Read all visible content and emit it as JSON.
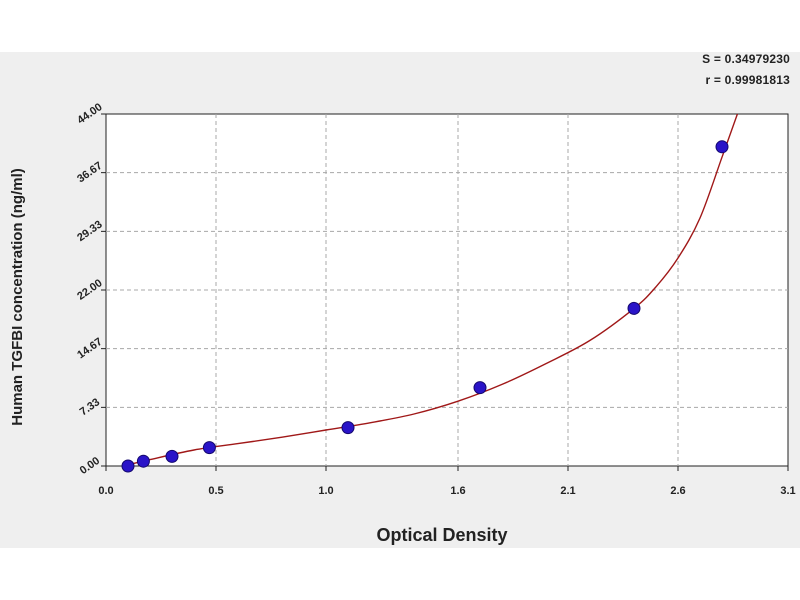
{
  "stats": {
    "s_label": "S = 0.34979230",
    "r_label": "r = 0.99981813"
  },
  "colors": {
    "panel_background": "#efefef",
    "plot_background": "#ffffff",
    "curve": "#a01818",
    "points": "#2a14c8",
    "grid": "#a8a8a8"
  },
  "chart_data": {
    "type": "scatter",
    "xlabel": "Optical Density",
    "ylabel": "Human TGFBI concentration (ng/ml)",
    "xlim": [
      0,
      3.1
    ],
    "ylim": [
      0,
      44
    ],
    "x_ticks": [
      0.0,
      0.5,
      1.0,
      1.6,
      2.1,
      2.6,
      3.1
    ],
    "x_tick_labels": [
      "0.0",
      "0.5",
      "1.0",
      "1.6",
      "2.1",
      "2.6",
      "3.1"
    ],
    "y_ticks": [
      0,
      7.33,
      14.67,
      22,
      29.33,
      36.67,
      44
    ],
    "y_tick_labels": [
      "0.00",
      "7.33",
      "14.67",
      "22.00",
      "29.33",
      "36.67",
      "44.00"
    ],
    "grid": true,
    "series": [
      {
        "type": "scatter",
        "x": [
          0.1,
          0.17,
          0.3,
          0.47,
          1.1,
          1.7,
          2.4,
          2.8
        ],
        "y": [
          0.0,
          0.6,
          1.2,
          2.3,
          4.8,
          9.8,
          19.7,
          39.9
        ]
      },
      {
        "type": "line",
        "x": [
          0.08,
          0.2,
          0.4,
          0.6,
          0.8,
          1.0,
          1.2,
          1.4,
          1.6,
          1.8,
          2.0,
          2.2,
          2.4,
          2.5,
          2.6,
          2.7,
          2.8,
          2.87
        ],
        "y": [
          0.0,
          0.8,
          2.0,
          2.8,
          3.6,
          4.5,
          5.4,
          6.5,
          8.1,
          10.2,
          12.8,
          15.7,
          19.7,
          22.4,
          26.0,
          31.0,
          38.6,
          44.0
        ]
      }
    ]
  }
}
